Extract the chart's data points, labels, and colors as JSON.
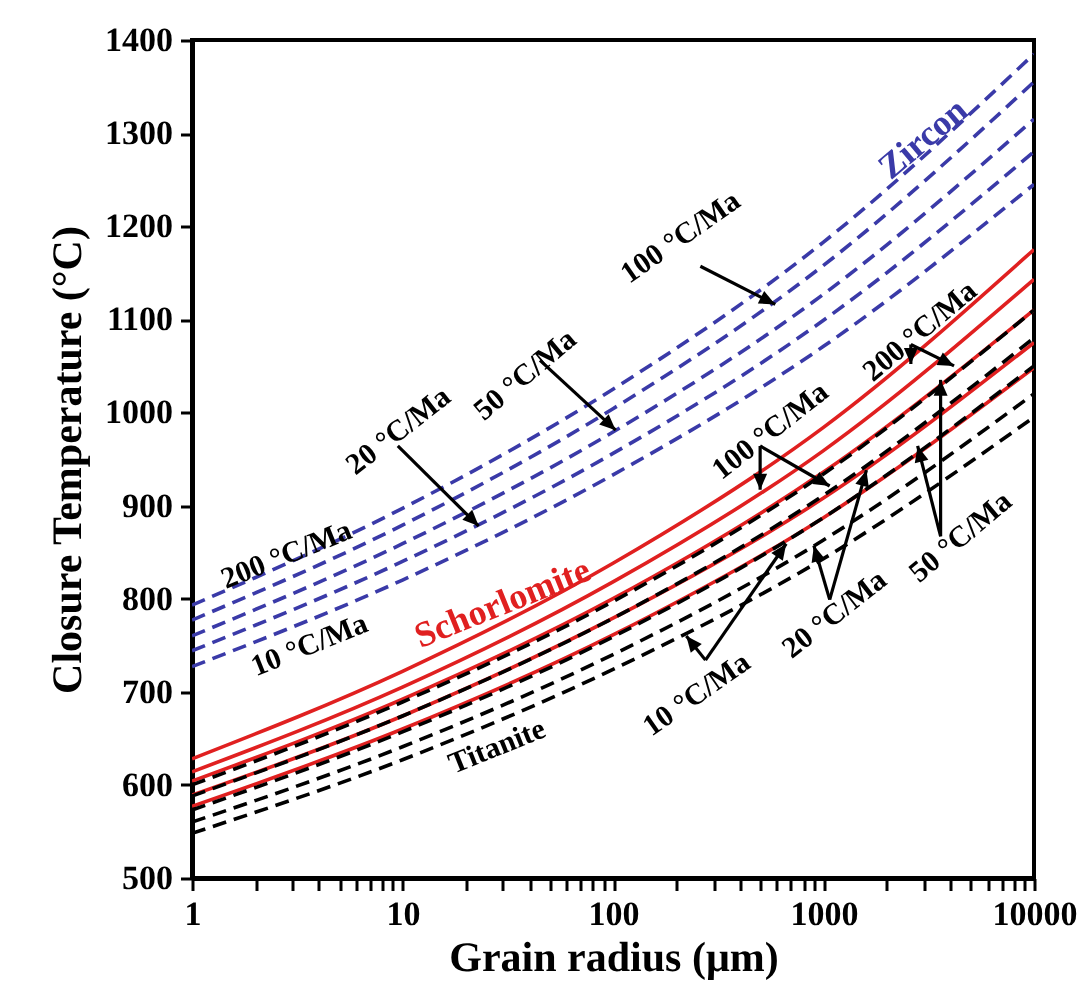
{
  "chart_data": {
    "type": "line",
    "xlabel": "Grain radius (μm)",
    "ylabel": "Closure Temperature (°C)",
    "x": [
      1,
      10,
      100,
      1000,
      10000
    ],
    "series": [
      {
        "color": "#3a3aa8",
        "line_style": "dashed",
        "values": [
          793,
          897,
          1025,
          1183,
          1385
        ]
      },
      {
        "color": "#3a3aa8",
        "line_style": "dashed",
        "values": [
          777,
          879,
          1004,
          1158,
          1355
        ]
      },
      {
        "color": "#3a3aa8",
        "line_style": "dashed",
        "values": [
          760,
          859,
          979,
          1127,
          1315
        ]
      },
      {
        "color": "#3a3aa8",
        "line_style": "dashed",
        "values": [
          744,
          840,
          956,
          1099,
          1280
        ]
      },
      {
        "color": "#3a3aa8",
        "line_style": "dashed",
        "values": [
          727,
          820,
          933,
          1071,
          1245
        ]
      },
      {
        "color": "#e02020",
        "line_style": "solid",
        "values": [
          628,
          722,
          838,
          984,
          1175
        ]
      },
      {
        "color": "#e02020",
        "line_style": "solid",
        "values": [
          614,
          705,
          818,
          959,
          1143
        ]
      },
      {
        "color": "#e02020",
        "line_style": "solid",
        "values": [
          604,
          692,
          800,
          936,
          1110
        ]
      },
      {
        "color": "#e02020",
        "line_style": "solid",
        "values": [
          589,
          674,
          779,
          908,
          1075
        ]
      },
      {
        "color": "#e02020",
        "line_style": "solid",
        "values": [
          577,
          660,
          761,
          887,
          1048
        ]
      },
      {
        "color": "#000000",
        "line_style": "dashed",
        "values": [
          600,
          689,
          797,
          934,
          1110
        ]
      },
      {
        "color": "#000000",
        "line_style": "dashed",
        "values": [
          588,
          674,
          779,
          911,
          1080
        ]
      },
      {
        "color": "#000000",
        "line_style": "dashed",
        "values": [
          573,
          657,
          759,
          887,
          1050
        ]
      },
      {
        "color": "#000000",
        "line_style": "dashed",
        "values": [
          560,
          641,
          740,
          863,
          1020
        ]
      },
      {
        "color": "#000000",
        "line_style": "dashed",
        "values": [
          548,
          627,
          724,
          843,
          995
        ]
      }
    ],
    "log": "x",
    "xlim": [
      1,
      10000
    ],
    "xticks": [
      1,
      {
        "value": 2,
        "label": null
      },
      {
        "value": 3,
        "label": null
      },
      {
        "value": 4,
        "label": null
      },
      {
        "value": 5,
        "label": null
      },
      {
        "value": 6,
        "label": null
      },
      {
        "value": 7,
        "label": null
      },
      {
        "value": 8,
        "label": null
      },
      {
        "value": 9,
        "label": null
      },
      10,
      {
        "value": 20,
        "label": null
      },
      {
        "value": 30,
        "label": null
      },
      {
        "value": 40,
        "label": null
      },
      {
        "value": 50,
        "label": null
      },
      {
        "value": 60,
        "label": null
      },
      {
        "value": 70,
        "label": null
      },
      {
        "value": 80,
        "label": null
      },
      {
        "value": 90,
        "label": null
      },
      100,
      {
        "value": 200,
        "label": null
      },
      {
        "value": 300,
        "label": null
      },
      {
        "value": 400,
        "label": null
      },
      {
        "value": 500,
        "label": null
      },
      {
        "value": 600,
        "label": null
      },
      {
        "value": 700,
        "label": null
      },
      {
        "value": 800,
        "label": null
      },
      {
        "value": 900,
        "label": null
      },
      1000,
      {
        "value": 2000,
        "label": null
      },
      {
        "value": 3000,
        "label": null
      },
      {
        "value": 4000,
        "label": null
      },
      {
        "value": 5000,
        "label": null
      },
      {
        "value": 6000,
        "label": null
      },
      {
        "value": 7000,
        "label": null
      },
      {
        "value": 8000,
        "label": null
      },
      {
        "value": 9000,
        "label": null
      },
      10000
    ],
    "ylim": [
      500,
      1400
    ],
    "yticks": [
      500,
      600,
      700,
      800,
      900,
      1000,
      1100,
      1200,
      1300,
      1400
    ],
    "grid": false,
    "marker": "none",
    "annotations": [
      "Zircon",
      "200 °C/Ma",
      "10 °C/Ma",
      {
        "text": "20 °C/Ma",
        "x": 23,
        "y": 878
      },
      {
        "text": "50 °C/Ma",
        "x": 103,
        "y": 981
      },
      {
        "text": "100 °C/Ma",
        "x": 590,
        "y": 1116
      },
      "Schorlomite",
      "Titanite",
      {
        "text": "100 °C/Ma",
        "x": 500,
        "y": 917
      },
      {
        "text": "200 °C/Ma",
        "x": 2600,
        "y": 1052
      },
      {
        "text": "10 °C/Ma",
        "x": 223,
        "y": 760
      },
      {
        "text": "20 °C/Ma",
        "x": 900,
        "y": 857
      },
      {
        "text": "50 °C/Ma",
        "x": 2800,
        "y": 964
      }
    ]
  }
}
